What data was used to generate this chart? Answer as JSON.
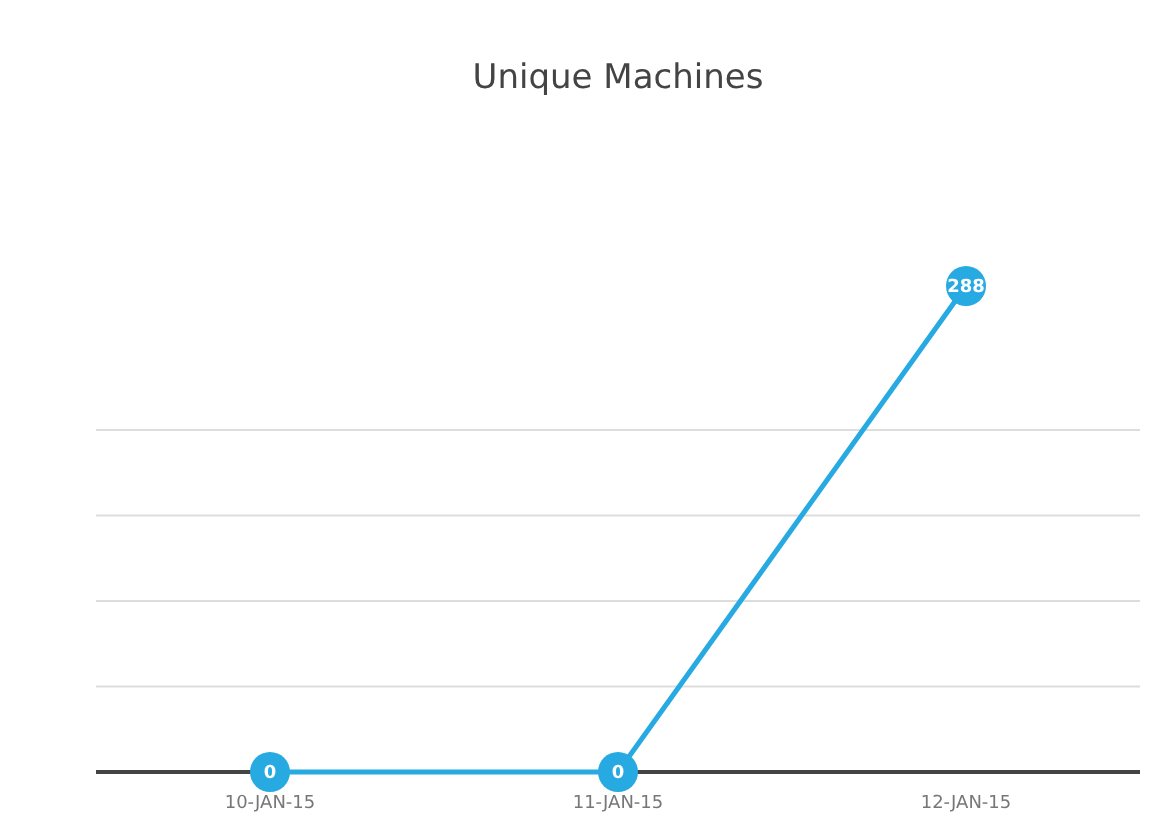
{
  "chart_data": {
    "type": "line",
    "title": "Unique Machines",
    "categories": [
      "10-JAN-15",
      "11-JAN-15",
      "12-JAN-15"
    ],
    "series": [
      {
        "color": "#27a9e1",
        "values": [
          0,
          0,
          288
        ]
      }
    ],
    "grid": "y",
    "tick_labels": "x",
    "marker": "circle",
    "data_labels": true
  }
}
